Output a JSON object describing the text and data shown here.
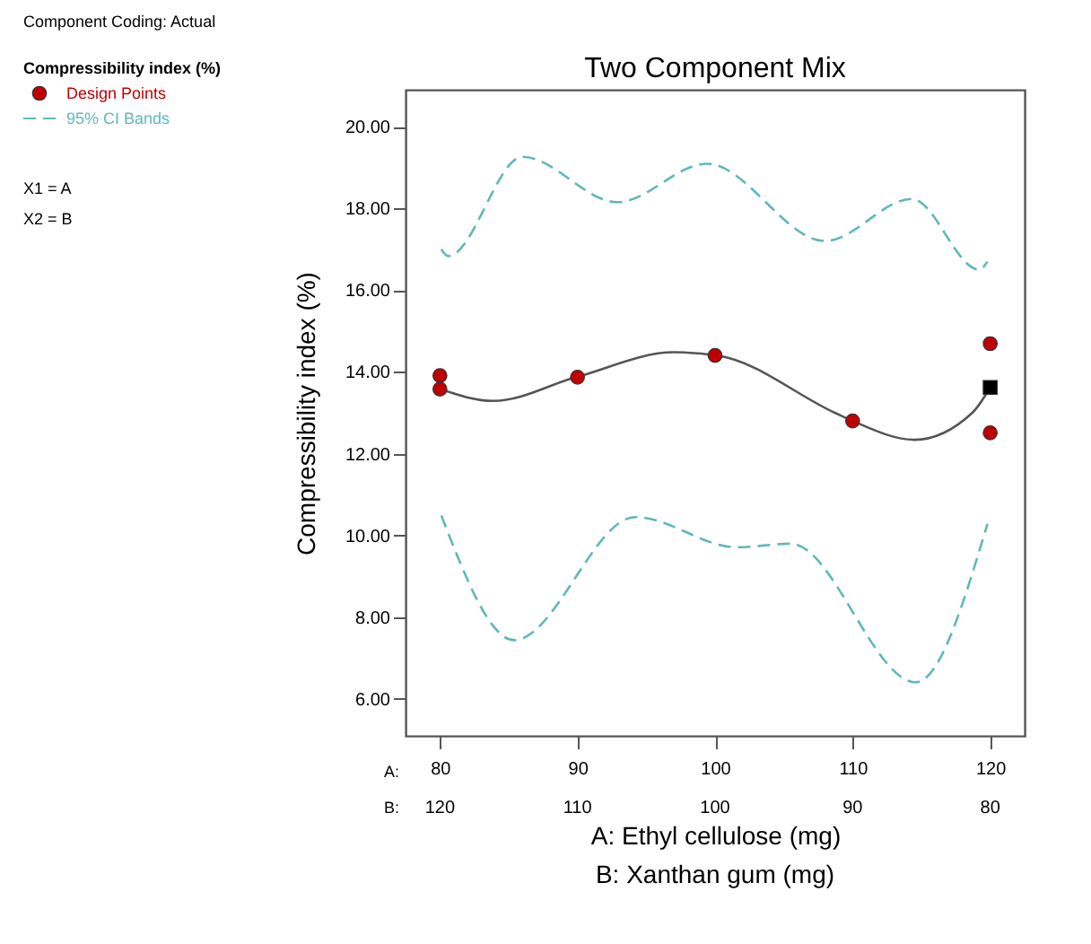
{
  "chart_data": {
    "type": "scatter",
    "title": "Two Component Mix",
    "xlabel": "A: Ethyl cellulose (mg)",
    "x2label": "B: Xanthan gum (mg)",
    "ylabel": "Compressibility index (%)",
    "legend_title": "Compressibility index (%)",
    "annotations": [
      "Component Coding: Actual",
      "X1 = A",
      "X2 = B",
      "A:",
      "B:"
    ],
    "xlim": [
      77.5,
      122.5
    ],
    "xticks": [
      80,
      90,
      100,
      110,
      120
    ],
    "x2lim": [
      122.5,
      77.5
    ],
    "x2ticks": [
      120,
      110,
      100,
      90,
      80
    ],
    "ylim": [
      5.1,
      20.9
    ],
    "yticks": [
      {
        "value": 6,
        "label": "6.00"
      },
      {
        "value": 8,
        "label": "8.00"
      },
      {
        "value": 10,
        "label": "10.00"
      },
      {
        "value": 12,
        "label": "12.00"
      },
      {
        "value": 14,
        "label": "14.00"
      },
      {
        "value": 16,
        "label": "16.00"
      },
      {
        "value": 18,
        "label": "18.00"
      },
      {
        "value": 20,
        "label": "20.00"
      }
    ],
    "grid": false,
    "legend": "left",
    "series": [
      {
        "color": "#c00000",
        "marker": "circle",
        "name": "Design Points",
        "x": [
          80,
          80,
          90,
          100,
          110,
          120,
          120
        ],
        "values": [
          13.91,
          13.58,
          13.87,
          14.4,
          12.8,
          14.69,
          12.51
        ]
      },
      {
        "type": "line",
        "color": "#5fb8b8",
        "line_style": "dashed",
        "name": "95% CI Bands",
        "x": [
          80.1,
          80.6,
          86,
          92.9,
          99.4,
          108,
          114.3,
          119.2,
          119.8
        ],
        "values": [
          17.0,
          16.83,
          19.26,
          18.15,
          19.09,
          17.2,
          18.23,
          16.5,
          16.7
        ]
      },
      {
        "type": "line",
        "color": "#5fb8b8",
        "line_style": "dashed",
        "x": [
          80.1,
          85.4,
          94.2,
          101.6,
          105.5,
          114.6,
          119.8
        ],
        "values": [
          10.49,
          7.44,
          10.45,
          9.71,
          9.8,
          6.41,
          10.28
        ]
      },
      {
        "type": "line",
        "color": "#555555",
        "line_style": "solid",
        "x": [
          80,
          83.9,
          89.9,
          97,
          100.2,
          108.7,
          110,
          114.5,
          118.7,
          120
        ],
        "values": [
          13.58,
          13.29,
          13.87,
          14.48,
          14.4,
          13.0,
          12.8,
          12.34,
          13.0,
          13.62
        ]
      },
      {
        "color": "#000000",
        "marker": "square",
        "x": [
          120
        ],
        "values": [
          13.62
        ]
      }
    ]
  }
}
